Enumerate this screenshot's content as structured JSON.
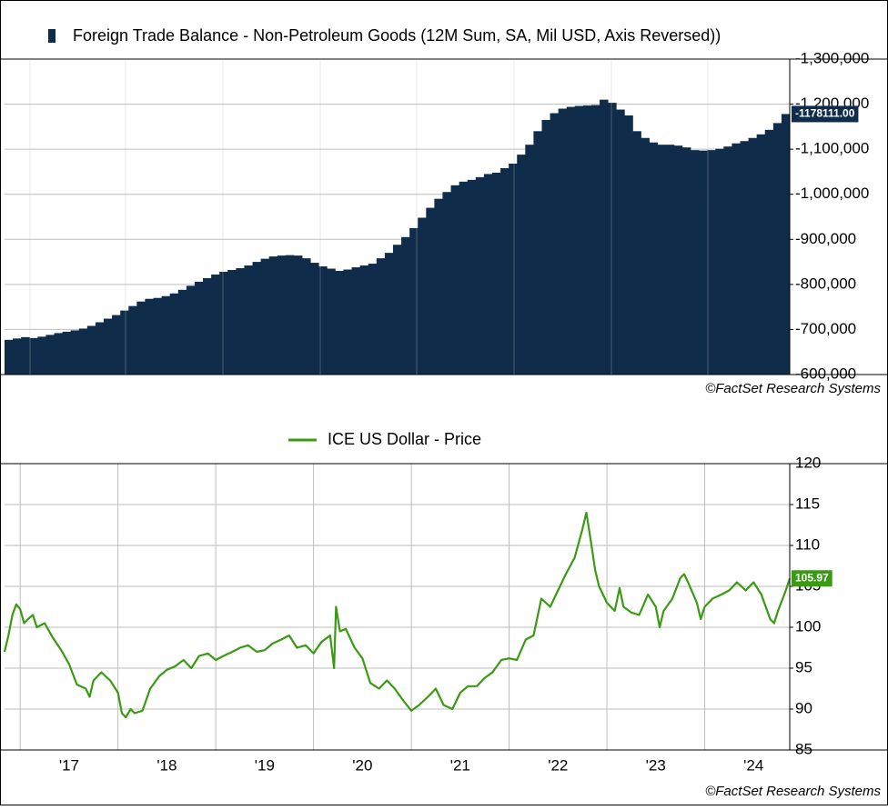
{
  "chart_data": [
    {
      "type": "bar",
      "series": [
        {
          "name": "Foreign Trade Balance - Non-Petroleum Goods (12M Sum, SA, Mil USD, Axis Reversed))",
          "color": "#0f2d4a",
          "values": [
            -677000,
            -680000,
            -683000,
            -681000,
            -684000,
            -688000,
            -692000,
            -695000,
            -698000,
            -702000,
            -708000,
            -716000,
            -724000,
            -732000,
            -742000,
            -752000,
            -762000,
            -768000,
            -770000,
            -774000,
            -780000,
            -788000,
            -797000,
            -806000,
            -814000,
            -822000,
            -828000,
            -832000,
            -836000,
            -842000,
            -850000,
            -857000,
            -862000,
            -864000,
            -865000,
            -864000,
            -858000,
            -848000,
            -840000,
            -835000,
            -830000,
            -833000,
            -838000,
            -842000,
            -846000,
            -858000,
            -870000,
            -888000,
            -905000,
            -925000,
            -948000,
            -970000,
            -990000,
            -1005000,
            -1020000,
            -1028000,
            -1032000,
            -1038000,
            -1045000,
            -1048000,
            -1058000,
            -1068000,
            -1088000,
            -1110000,
            -1140000,
            -1165000,
            -1180000,
            -1190000,
            -1194000,
            -1196000,
            -1197000,
            -1198000,
            -1210000,
            -1203000,
            -1188000,
            -1175000,
            -1140000,
            -1125000,
            -1115000,
            -1110000,
            -1110000,
            -1108000,
            -1104000,
            -1098000,
            -1097000,
            -1098000,
            -1101000,
            -1106000,
            -1113000,
            -1118000,
            -1125000,
            -1133000,
            -1143000,
            -1158000,
            -1178111
          ],
          "value_labels": [
            null,
            null,
            null,
            null,
            null,
            null,
            null,
            null,
            null,
            null,
            null,
            null,
            null,
            null,
            null,
            null,
            null,
            null,
            null,
            null,
            null,
            null,
            null,
            null,
            null,
            null,
            null,
            null,
            null,
            null,
            null,
            null,
            null,
            null,
            null,
            null,
            null,
            null,
            null,
            null,
            null,
            null,
            null,
            null,
            null,
            null,
            null,
            null,
            null,
            null,
            null,
            null,
            null,
            null,
            null,
            null,
            null,
            null,
            null,
            null,
            null,
            null,
            null,
            null,
            null,
            null,
            null,
            null,
            null,
            null,
            null,
            null,
            null,
            null,
            null,
            null,
            null,
            null,
            null,
            null,
            null,
            null,
            null,
            null,
            null,
            null,
            null,
            null,
            null,
            null,
            null,
            null,
            null,
            null,
            "-1178111.00"
          ]
        }
      ],
      "ylim": [
        -600000,
        -1300000
      ],
      "yticks": [
        {
          "value": -1300000,
          "label": "-1,300,000"
        },
        {
          "value": -1200000,
          "label": "-1,200,000"
        },
        {
          "value": -1100000,
          "label": "-1,100,000"
        },
        {
          "value": -1000000,
          "label": "-1,000,000"
        },
        {
          "value": -900000,
          "label": "-900,000"
        },
        {
          "value": -800000,
          "label": "-800,000"
        },
        {
          "value": -700000,
          "label": "-700,000"
        },
        {
          "value": -600000,
          "label": "-600,000"
        }
      ],
      "grid": true,
      "credit": "©FactSet Research Systems"
    },
    {
      "type": "line",
      "x": [
        2016.84,
        2016.88,
        2016.92,
        2016.96,
        2017.0,
        2017.04,
        2017.08,
        2017.13,
        2017.17,
        2017.25,
        2017.33,
        2017.42,
        2017.5,
        2017.58,
        2017.67,
        2017.71,
        2017.75,
        2017.83,
        2017.92,
        2018.0,
        2018.04,
        2018.08,
        2018.13,
        2018.17,
        2018.25,
        2018.33,
        2018.42,
        2018.5,
        2018.58,
        2018.67,
        2018.75,
        2018.83,
        2018.92,
        2019.0,
        2019.08,
        2019.17,
        2019.25,
        2019.33,
        2019.42,
        2019.5,
        2019.58,
        2019.67,
        2019.75,
        2019.83,
        2019.92,
        2020.0,
        2020.08,
        2020.17,
        2020.21,
        2020.23,
        2020.27,
        2020.33,
        2020.42,
        2020.5,
        2020.58,
        2020.67,
        2020.75,
        2020.83,
        2020.92,
        2021.0,
        2021.08,
        2021.17,
        2021.25,
        2021.33,
        2021.42,
        2021.5,
        2021.58,
        2021.67,
        2021.75,
        2021.83,
        2021.92,
        2022.0,
        2022.08,
        2022.17,
        2022.25,
        2022.33,
        2022.42,
        2022.5,
        2022.58,
        2022.67,
        2022.75,
        2022.79,
        2022.83,
        2022.88,
        2022.92,
        2023.0,
        2023.08,
        2023.13,
        2023.17,
        2023.25,
        2023.33,
        2023.42,
        2023.5,
        2023.54,
        2023.58,
        2023.67,
        2023.75,
        2023.79,
        2023.83,
        2023.92,
        2023.96,
        2024.0,
        2024.08,
        2024.17,
        2024.25,
        2024.33,
        2024.42,
        2024.5,
        2024.58,
        2024.67,
        2024.71,
        2024.75,
        2024.83,
        2024.87
      ],
      "series": [
        {
          "name": "ICE US Dollar - Price",
          "color": "#3a9a12",
          "values": [
            97.0,
            99.0,
            101.5,
            102.8,
            102.2,
            100.5,
            101.0,
            101.5,
            100.0,
            100.5,
            98.8,
            97.2,
            95.5,
            93.0,
            92.5,
            91.5,
            93.5,
            94.5,
            93.5,
            92.0,
            89.5,
            89.0,
            90.0,
            89.5,
            89.8,
            92.5,
            94.0,
            94.8,
            95.2,
            96.0,
            95.0,
            96.5,
            96.8,
            96.0,
            96.5,
            97.0,
            97.5,
            97.8,
            97.0,
            97.2,
            98.0,
            98.5,
            99.0,
            97.5,
            97.8,
            96.8,
            98.2,
            99.0,
            95.0,
            102.5,
            99.5,
            99.8,
            97.5,
            96.2,
            93.2,
            92.5,
            93.5,
            92.5,
            91.0,
            89.8,
            90.5,
            91.5,
            92.5,
            90.5,
            90.0,
            92.0,
            92.8,
            92.8,
            93.8,
            94.5,
            96.0,
            96.2,
            96.0,
            98.5,
            99.0,
            103.5,
            102.5,
            104.5,
            106.5,
            108.5,
            112.0,
            114.0,
            111.0,
            107.0,
            105.0,
            103.0,
            102.0,
            104.8,
            102.5,
            101.8,
            101.5,
            104.0,
            102.5,
            100.0,
            102.0,
            103.5,
            106.0,
            106.5,
            105.5,
            103.0,
            101.0,
            102.5,
            103.5,
            104.0,
            104.5,
            105.5,
            104.5,
            105.5,
            104.0,
            101.0,
            100.5,
            102.0,
            104.5,
            105.97
          ],
          "value_labels": [
            null,
            null,
            null,
            null,
            null,
            null,
            null,
            null,
            null,
            null,
            null,
            null,
            null,
            null,
            null,
            null,
            null,
            null,
            null,
            null,
            null,
            null,
            null,
            null,
            null,
            null,
            null,
            null,
            null,
            null,
            null,
            null,
            null,
            null,
            null,
            null,
            null,
            null,
            null,
            null,
            null,
            null,
            null,
            null,
            null,
            null,
            null,
            null,
            null,
            null,
            null,
            null,
            null,
            null,
            null,
            null,
            null,
            null,
            null,
            null,
            null,
            null,
            null,
            null,
            null,
            null,
            null,
            null,
            null,
            null,
            null,
            null,
            null,
            null,
            null,
            null,
            null,
            null,
            null,
            null,
            null,
            null,
            null,
            null,
            null,
            null,
            null,
            null,
            null,
            null,
            null,
            null,
            null,
            null,
            null,
            null,
            null,
            null,
            null,
            null,
            null,
            null,
            null,
            null,
            null,
            null,
            null,
            null,
            null,
            null,
            null,
            null,
            null,
            "105.97"
          ]
        }
      ],
      "xlim": [
        2016.84,
        2024.87
      ],
      "xticks": [
        {
          "value": 2017,
          "label": "'17"
        },
        {
          "value": 2018,
          "label": "'18"
        },
        {
          "value": 2019,
          "label": "'19"
        },
        {
          "value": 2020,
          "label": "'20"
        },
        {
          "value": 2021,
          "label": "'21"
        },
        {
          "value": 2022,
          "label": "'22"
        },
        {
          "value": 2023,
          "label": "'23"
        },
        {
          "value": 2024,
          "label": "'24"
        }
      ],
      "ylim": [
        85,
        120
      ],
      "yticks": [
        85,
        90,
        95,
        100,
        105,
        110,
        115,
        120
      ],
      "grid": true,
      "credit": "©FactSet Research Systems"
    }
  ]
}
